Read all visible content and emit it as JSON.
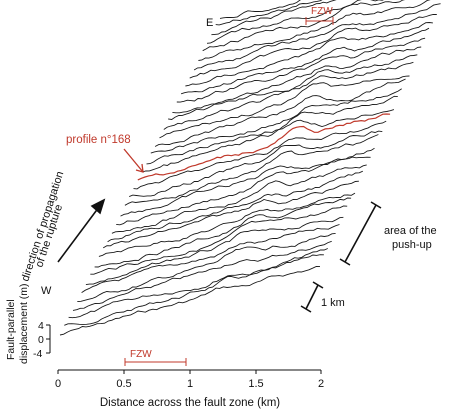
{
  "figure": {
    "label_east": "E",
    "label_west": "W",
    "fzw_top": "FZW",
    "fzw_bottom": "FZW",
    "profile_label": "profile n°168",
    "push_up_line1": "area of the",
    "push_up_line2": "push-up",
    "scale_bar_label": "1 km",
    "rupture_line1": "direction of propagation",
    "rupture_line2": "of the rupture",
    "y_axis_line1": "Fault-parallel",
    "y_axis_line2": "displacement (m)",
    "y_ticks": [
      "4",
      "0",
      "-4"
    ],
    "x_ticks": [
      "0",
      "0.5",
      "1",
      "1.5",
      "2"
    ],
    "x_axis_label": "Distance across the fault zone (km)",
    "profile_color": "#c0392b"
  }
}
